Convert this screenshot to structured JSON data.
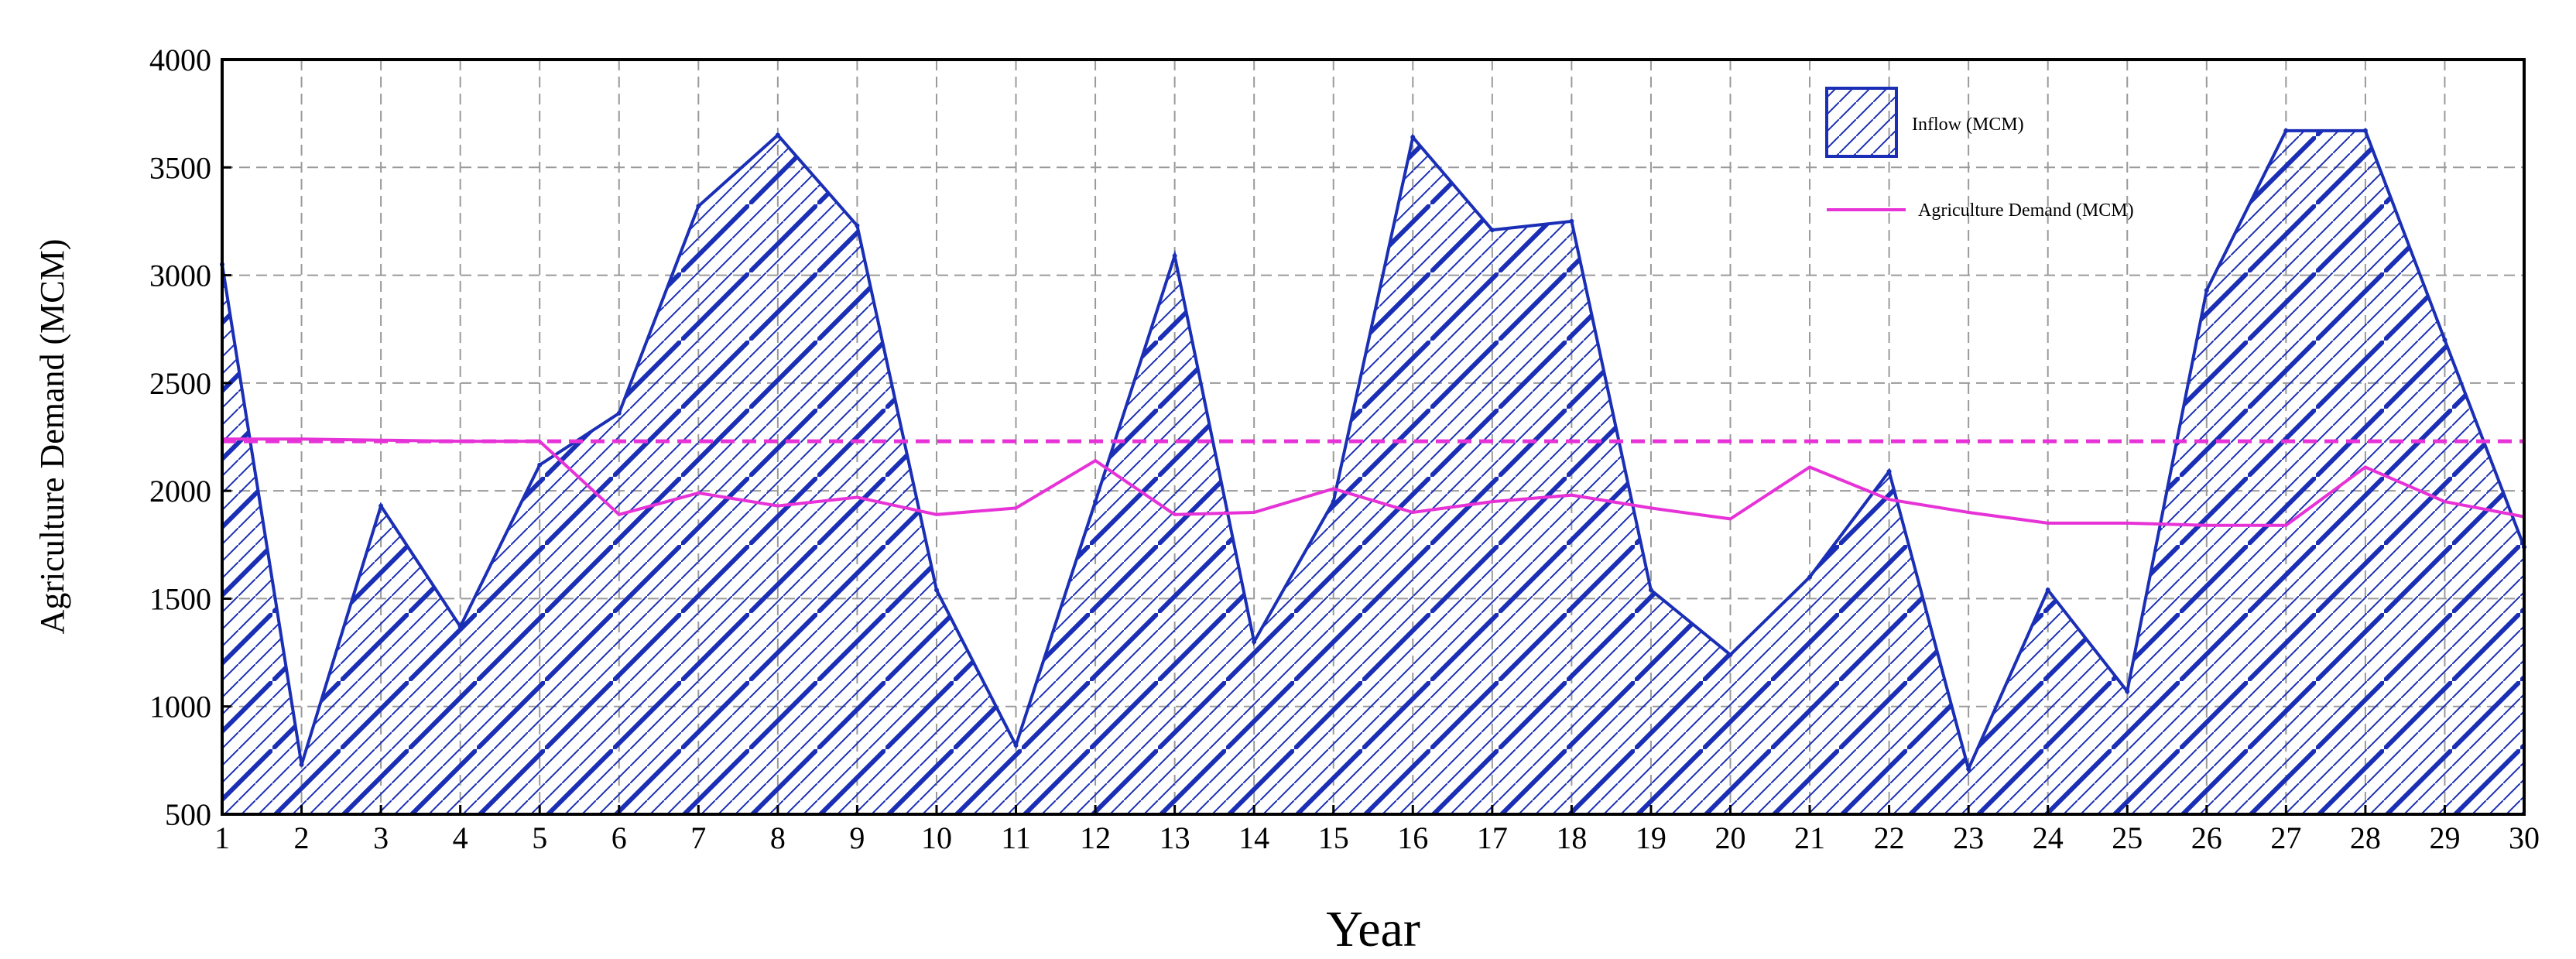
{
  "chart_data": {
    "type": "area",
    "xlabel": "Year",
    "ylabel": "Agriculture Demand (MCM)",
    "x": [
      1,
      2,
      3,
      4,
      5,
      6,
      7,
      8,
      9,
      10,
      11,
      12,
      13,
      14,
      15,
      16,
      17,
      18,
      19,
      20,
      21,
      22,
      23,
      24,
      25,
      26,
      27,
      28,
      29,
      30
    ],
    "xlim": [
      1,
      30
    ],
    "ylim": [
      500,
      4000
    ],
    "yticks": [
      500,
      1000,
      1500,
      2000,
      2500,
      3000,
      3500,
      4000
    ],
    "grid": true,
    "legend_position": "top-right",
    "series": [
      {
        "name": "Inflow (MCM)",
        "kind": "hatched-area",
        "color": "#1a2fb5",
        "values": [
          3050,
          730,
          1930,
          1370,
          2120,
          2360,
          3320,
          3650,
          3230,
          1540,
          820,
          1950,
          3090,
          1300,
          1950,
          3640,
          3210,
          3250,
          1540,
          1240,
          1600,
          2090,
          710,
          1540,
          1070,
          2930,
          3670,
          3670,
          2700,
          1740
        ]
      },
      {
        "name": "Agriculture Demand (MCM)",
        "kind": "line",
        "color": "#e632d6",
        "values": [
          2240,
          2240,
          2235,
          2230,
          2230,
          1890,
          1990,
          1930,
          1970,
          1890,
          1920,
          2140,
          1890,
          1900,
          2010,
          1900,
          1950,
          1980,
          1920,
          1870,
          2110,
          1960,
          1900,
          1850,
          1850,
          1840,
          1840,
          2110,
          1950,
          1880
        ]
      }
    ],
    "reference_line": {
      "value": 2230,
      "style": "dashed",
      "color": "#e632d6"
    }
  }
}
